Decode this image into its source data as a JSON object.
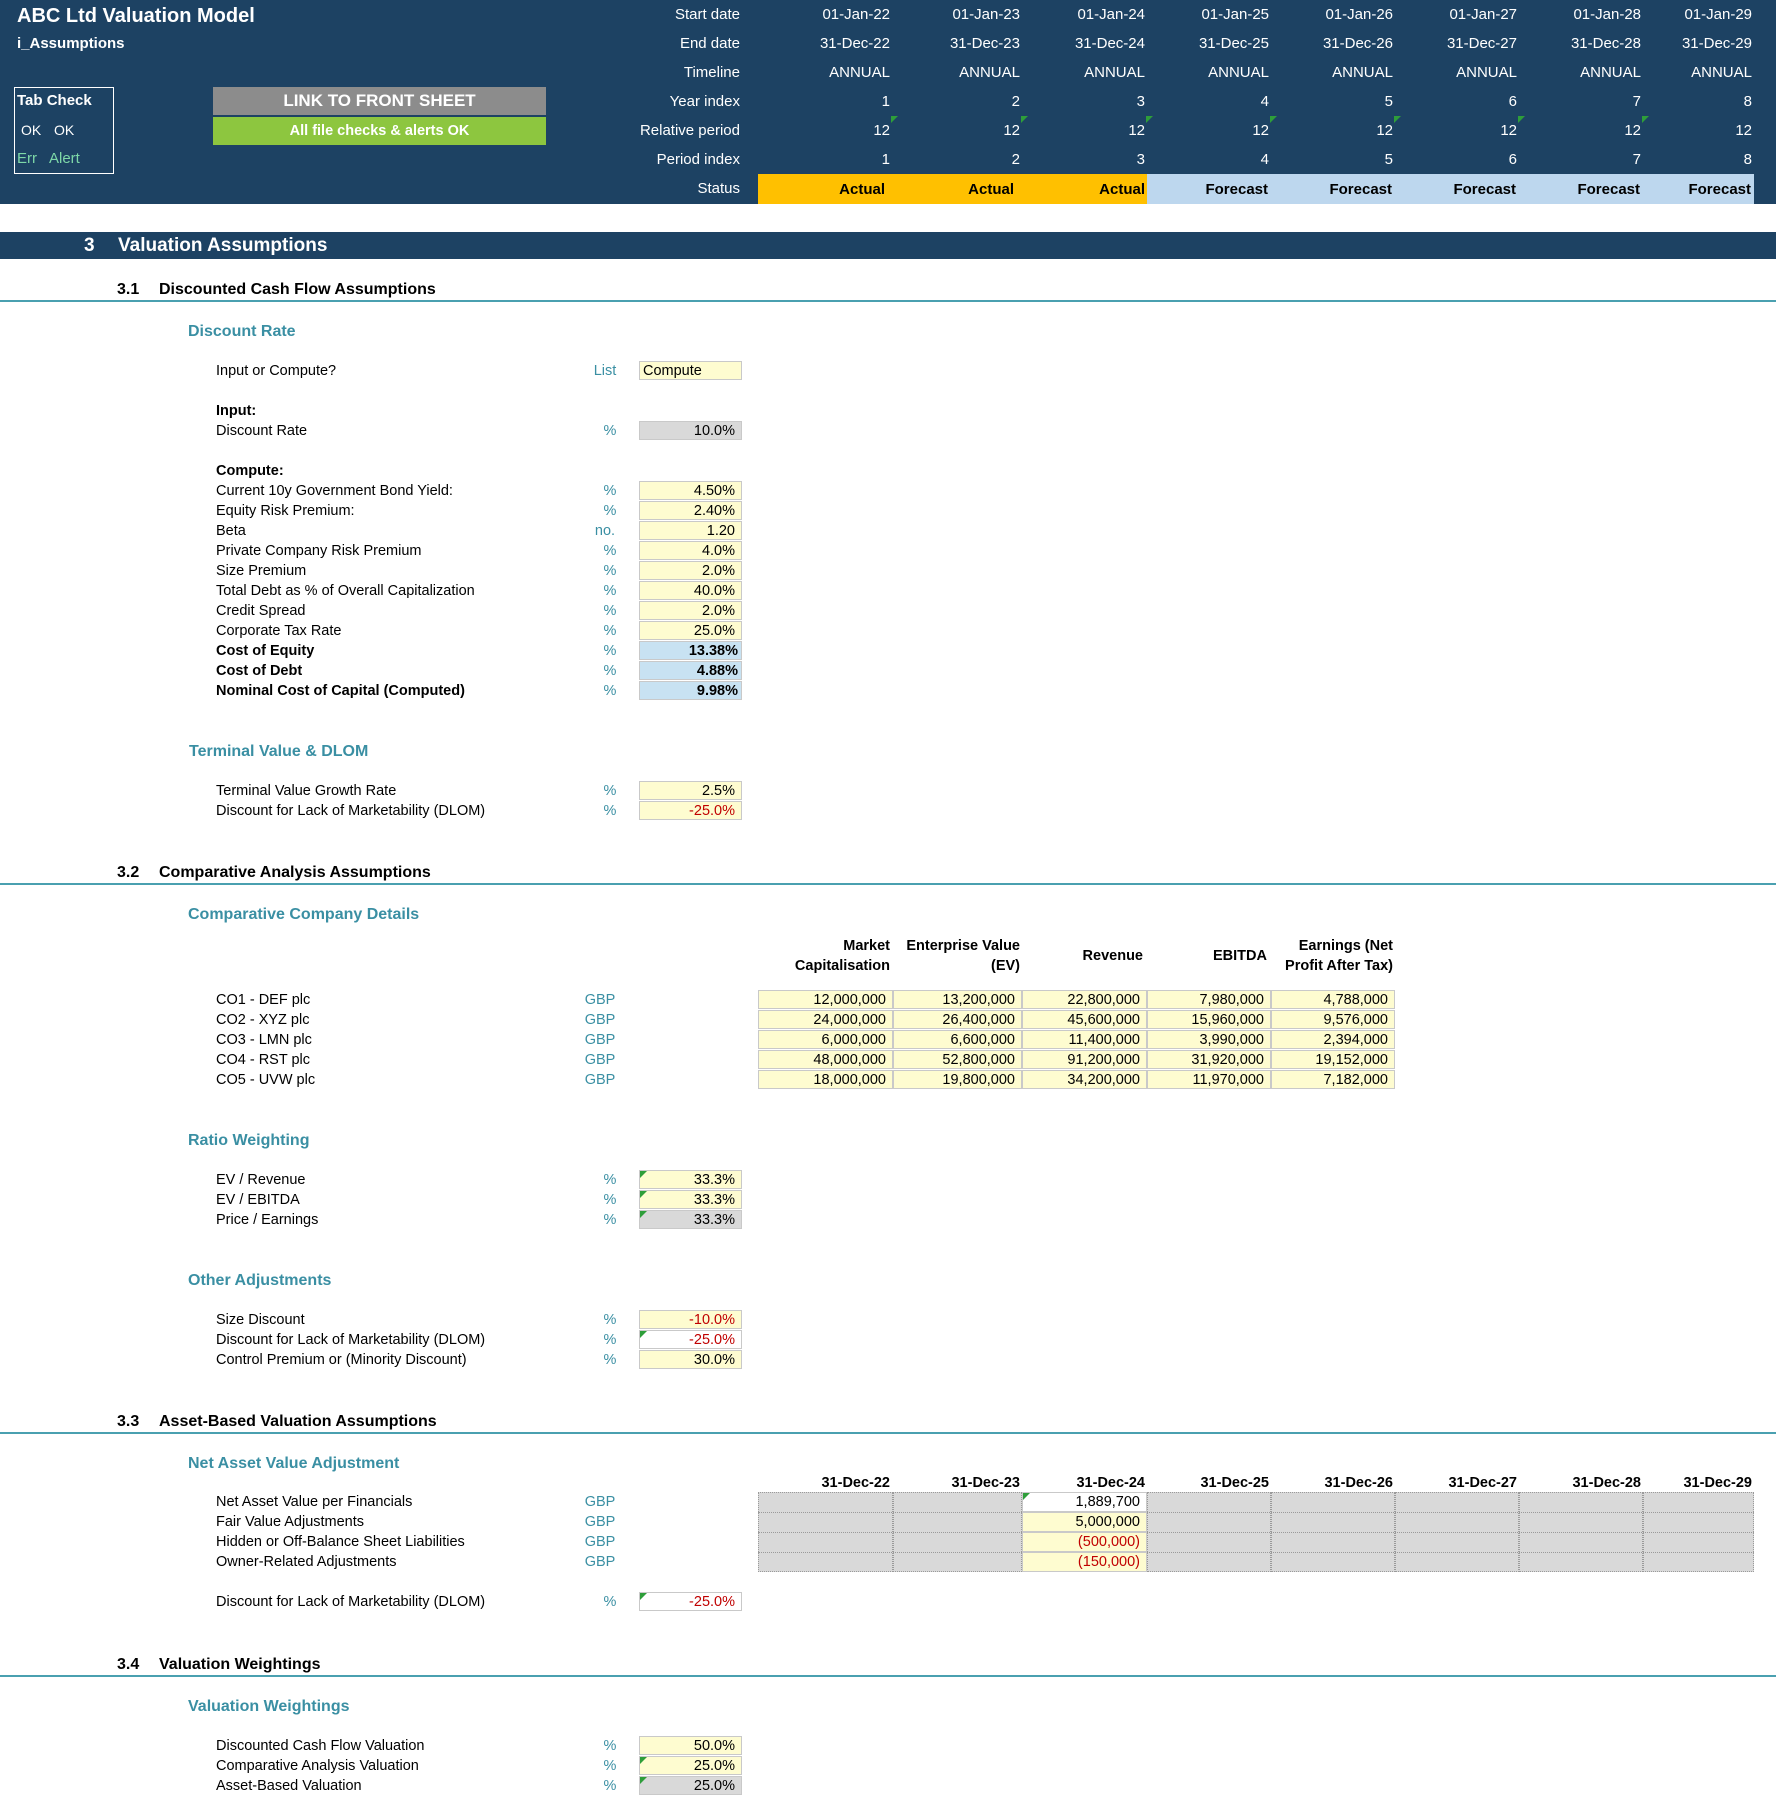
{
  "header": {
    "title": "ABC Ltd Valuation Model",
    "sheet": "i_Assumptions",
    "tab_check": {
      "title": "Tab Check",
      "ok1": "OK",
      "ok2": "OK",
      "err": "Err",
      "alert": "Alert"
    },
    "link_button": "LINK TO FRONT SHEET",
    "checks_status": "All file checks & alerts OK",
    "row_labels": [
      "Start date",
      "End date",
      "Timeline",
      "Year index",
      "Relative period",
      "Period index",
      "Status"
    ],
    "periods": [
      {
        "start": "01-Jan-22",
        "end": "31-Dec-22",
        "timeline": "ANNUAL",
        "year_index": "1",
        "relative_period": "12",
        "period_index": "1",
        "status": "Actual"
      },
      {
        "start": "01-Jan-23",
        "end": "31-Dec-23",
        "timeline": "ANNUAL",
        "year_index": "2",
        "relative_period": "12",
        "period_index": "2",
        "status": "Actual"
      },
      {
        "start": "01-Jan-24",
        "end": "31-Dec-24",
        "timeline": "ANNUAL",
        "year_index": "3",
        "relative_period": "12",
        "period_index": "3",
        "status": "Actual"
      },
      {
        "start": "01-Jan-25",
        "end": "31-Dec-25",
        "timeline": "ANNUAL",
        "year_index": "4",
        "relative_period": "12",
        "period_index": "4",
        "status": "Forecast"
      },
      {
        "start": "01-Jan-26",
        "end": "31-Dec-26",
        "timeline": "ANNUAL",
        "year_index": "5",
        "relative_period": "12",
        "period_index": "5",
        "status": "Forecast"
      },
      {
        "start": "01-Jan-27",
        "end": "31-Dec-27",
        "timeline": "ANNUAL",
        "year_index": "6",
        "relative_period": "12",
        "period_index": "6",
        "status": "Forecast"
      },
      {
        "start": "01-Jan-28",
        "end": "31-Dec-28",
        "timeline": "ANNUAL",
        "year_index": "7",
        "relative_period": "12",
        "period_index": "7",
        "status": "Forecast"
      },
      {
        "start": "01-Jan-29",
        "end": "31-Dec-29",
        "timeline": "ANNUAL",
        "year_index": "8",
        "relative_period": "12",
        "period_index": "8",
        "status": "Forecast"
      }
    ]
  },
  "colors": {
    "navy": "#1d4263",
    "actual": "#ffc000",
    "forecast": "#bdd7ee",
    "ok_green": "#8dc63f",
    "input_yellow": "#fefcd0",
    "teal": "#3a8fa3"
  },
  "section": {
    "number": "3",
    "title": "Valuation Assumptions"
  },
  "s31": {
    "number": "3.1",
    "title": "Discounted Cash Flow Assumptions",
    "discount_rate": {
      "title": "Discount Rate",
      "mode_label": "Input or Compute?",
      "mode_unit": "List",
      "mode_value": "Compute",
      "input_heading": "Input:",
      "input_rows": [
        {
          "label": "Discount Rate",
          "unit": "%",
          "value": "10.0%"
        }
      ],
      "compute_heading": "Compute:",
      "compute_rows": [
        {
          "label": "Current 10y Government Bond Yield:",
          "unit": "%",
          "value": "4.50%"
        },
        {
          "label": "Equity Risk Premium:",
          "unit": "%",
          "value": "2.40%"
        },
        {
          "label": "Beta",
          "unit": "no.",
          "value": "1.20"
        },
        {
          "label": "Private Company Risk Premium",
          "unit": "%",
          "value": "4.0%"
        },
        {
          "label": "Size Premium",
          "unit": "%",
          "value": "2.0%"
        },
        {
          "label": "Total Debt as % of Overall Capitalization",
          "unit": "%",
          "value": "40.0%"
        },
        {
          "label": "Credit Spread",
          "unit": "%",
          "value": "2.0%"
        },
        {
          "label": "Corporate Tax Rate",
          "unit": "%",
          "value": "25.0%"
        },
        {
          "label": "Cost of Equity",
          "unit": "%",
          "value": "13.38%"
        },
        {
          "label": "Cost of Debt",
          "unit": "%",
          "value": "4.88%"
        },
        {
          "label": "Nominal Cost of Capital (Computed)",
          "unit": "%",
          "value": "9.98%"
        }
      ]
    },
    "terminal": {
      "title": "Terminal Value & DLOM",
      "rows": [
        {
          "label": "Terminal Value Growth Rate",
          "unit": "%",
          "value": "2.5%"
        },
        {
          "label": "Discount for Lack of Marketability (DLOM)",
          "unit": "%",
          "value": "-25.0%"
        }
      ]
    }
  },
  "s32": {
    "number": "3.2",
    "title": "Comparative Analysis Assumptions",
    "companies": {
      "title": "Comparative Company Details",
      "col_headers": [
        [
          "Market",
          "Capitalisation"
        ],
        [
          "Enterprise Value",
          "(EV)"
        ],
        [
          "",
          "Revenue"
        ],
        [
          "",
          "EBITDA"
        ],
        [
          "Earnings (Net",
          "Profit After Tax)"
        ]
      ],
      "rows": [
        {
          "label": "CO1 - DEF plc",
          "unit": "GBP",
          "values": [
            "12,000,000",
            "13,200,000",
            "22,800,000",
            "7,980,000",
            "4,788,000"
          ]
        },
        {
          "label": "CO2 - XYZ plc",
          "unit": "GBP",
          "values": [
            "24,000,000",
            "26,400,000",
            "45,600,000",
            "15,960,000",
            "9,576,000"
          ]
        },
        {
          "label": "CO3 - LMN plc",
          "unit": "GBP",
          "values": [
            "6,000,000",
            "6,600,000",
            "11,400,000",
            "3,990,000",
            "2,394,000"
          ]
        },
        {
          "label": "CO4 - RST plc",
          "unit": "GBP",
          "values": [
            "48,000,000",
            "52,800,000",
            "91,200,000",
            "31,920,000",
            "19,152,000"
          ]
        },
        {
          "label": "CO5 - UVW plc",
          "unit": "GBP",
          "values": [
            "18,000,000",
            "19,800,000",
            "34,200,000",
            "11,970,000",
            "7,182,000"
          ]
        }
      ]
    },
    "ratio": {
      "title": "Ratio Weighting",
      "rows": [
        {
          "label": "EV / Revenue",
          "unit": "%",
          "value": "33.3%"
        },
        {
          "label": "EV / EBITDA",
          "unit": "%",
          "value": "33.3%"
        },
        {
          "label": "Price / Earnings",
          "unit": "%",
          "value": "33.3%"
        }
      ]
    },
    "other": {
      "title": "Other Adjustments",
      "rows": [
        {
          "label": "Size Discount",
          "unit": "%",
          "value": "-10.0%"
        },
        {
          "label": "Discount for Lack of Marketability (DLOM)",
          "unit": "%",
          "value": "-25.0%"
        },
        {
          "label": "Control Premium or (Minority Discount)",
          "unit": "%",
          "value": "30.0%"
        }
      ]
    }
  },
  "s33": {
    "number": "3.3",
    "title": "Asset-Based Valuation Assumptions",
    "nav": {
      "title": "Net Asset Value Adjustment",
      "dates": [
        "31-Dec-22",
        "31-Dec-23",
        "31-Dec-24",
        "31-Dec-25",
        "31-Dec-26",
        "31-Dec-27",
        "31-Dec-28",
        "31-Dec-29"
      ],
      "rows": [
        {
          "label": "Net Asset Value per Financials",
          "unit": "GBP",
          "value": "1,889,700"
        },
        {
          "label": "Fair Value Adjustments",
          "unit": "GBP",
          "value": "5,000,000"
        },
        {
          "label": "Hidden or Off-Balance Sheet Liabilities",
          "unit": "GBP",
          "value": "(500,000)"
        },
        {
          "label": "Owner-Related Adjustments",
          "unit": "GBP",
          "value": "(150,000)"
        }
      ],
      "dlom": {
        "label": "Discount for Lack of Marketability (DLOM)",
        "unit": "%",
        "value": "-25.0%"
      }
    }
  },
  "s34": {
    "number": "3.4",
    "title": "Valuation Weightings",
    "weights": {
      "title": "Valuation Weightings",
      "rows": [
        {
          "label": "Discounted Cash Flow Valuation",
          "unit": "%",
          "value": "50.0%"
        },
        {
          "label": "Comparative Analysis Valuation",
          "unit": "%",
          "value": "25.0%"
        },
        {
          "label": "Asset-Based Valuation",
          "unit": "%",
          "value": "25.0%"
        }
      ]
    }
  }
}
